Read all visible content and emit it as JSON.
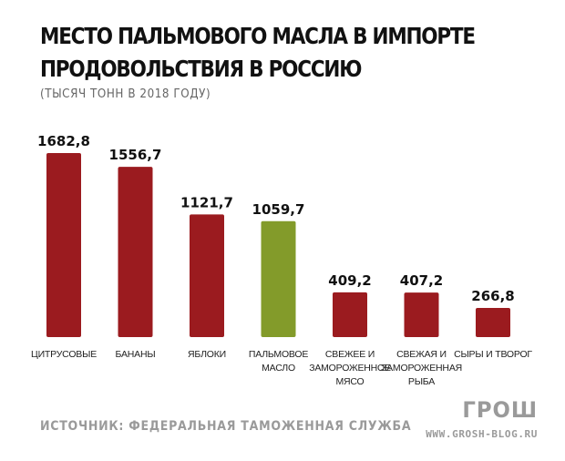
{
  "chart_data": {
    "type": "bar",
    "title_lines": [
      "МЕСТО ПАЛЬМОВОГО МАСЛА В ИМПОРТЕ",
      "ПРОДОВОЛЬСТВИЯ В РОССИЮ"
    ],
    "subtitle": "(ТЫСЯЧ ТОНН В 2018 ГОДУ)",
    "categories": [
      [
        "ЦИТРУСОВЫЕ"
      ],
      [
        "БАНАНЫ"
      ],
      [
        "ЯБЛОКИ"
      ],
      [
        "ПАЛЬМОВОЕ",
        "МАСЛО"
      ],
      [
        "СВЕЖЕЕ И",
        "ЗАМОРОЖЕННОЕ",
        "МЯСО"
      ],
      [
        "СВЕЖАЯ И",
        "ЗАМОРОЖЕННАЯ",
        "РЫБА"
      ],
      [
        "СЫРЫ И ТВОРОГ"
      ]
    ],
    "values": [
      1682.8,
      1556.7,
      1121.7,
      1059.7,
      409.2,
      407.2,
      266.8
    ],
    "value_labels": [
      "1682,8",
      "1556,7",
      "1121,7",
      "1059,7",
      "409,2",
      "407,2",
      "266,8"
    ],
    "highlight_index": 3,
    "colors": {
      "default": "#9b1b1f",
      "highlight": "#839b2a"
    },
    "ylim": [
      0,
      1682.8
    ],
    "xlabel": "",
    "ylabel": ""
  },
  "footer": {
    "source": "ИСТОЧНИК: ФЕДЕРАЛЬНАЯ ТАМОЖЕННАЯ СЛУЖБА",
    "logo": "ГРОШ",
    "site": "WWW.GROSH-BLOG.RU"
  }
}
